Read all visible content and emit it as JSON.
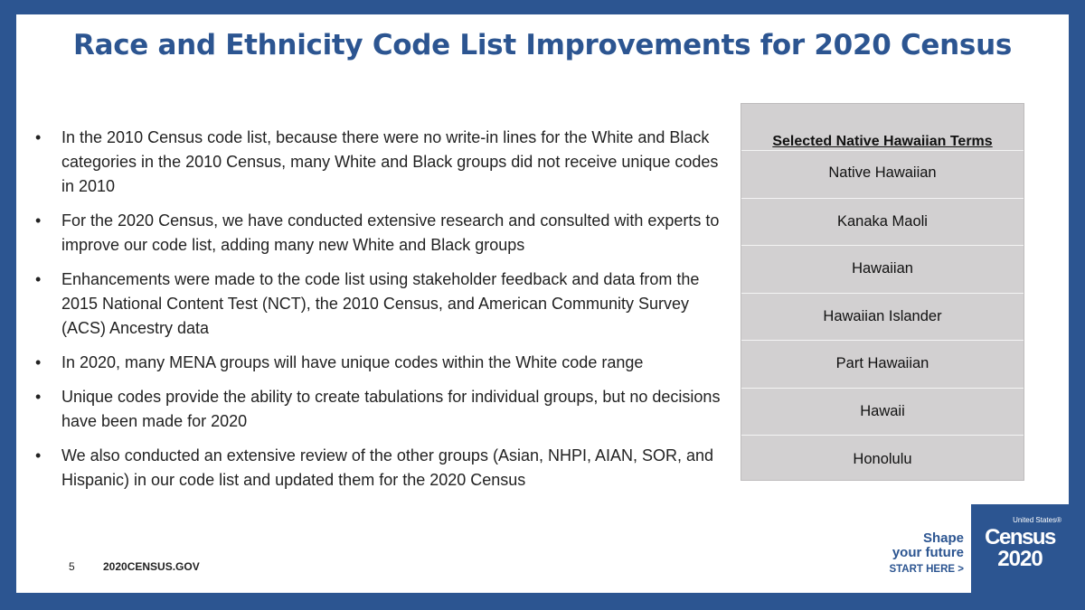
{
  "slide": {
    "title": "Race and Ethnicity Code List Improvements for 2020 Census",
    "bullets": [
      "In the 2010 Census code list, because there were no write-in lines for the White and Black categories in the 2010 Census, many White and Black groups did not receive unique codes in 2010",
      "For the 2020 Census, we have conducted extensive research and consulted with experts to improve our code list, adding many new White and Black groups",
      "Enhancements were made to the code list using stakeholder feedback and data from the 2015 National Content Test (NCT), the 2010 Census, and American Community Survey (ACS) Ancestry data",
      "In 2020, many MENA groups will have unique codes within the White code range",
      "Unique codes provide the ability to create tabulations for individual groups, but no decisions have been made for 2020",
      "We also conducted an extensive review of the other groups (Asian, NHPI, AIAN, SOR, and Hispanic) in our code list and updated them for the 2020 Census"
    ]
  },
  "terms_table": {
    "header": "Selected Native Hawaiian Terms",
    "rows": [
      "Native Hawaiian",
      "Kanaka Maoli",
      "Hawaiian",
      "Hawaiian Islander",
      "Part Hawaiian",
      "Hawaii",
      "Honolulu"
    ]
  },
  "footer": {
    "page_number": "5",
    "website": "2020CENSUS.GOV",
    "tagline_line1": "Shape",
    "tagline_line2": "your future",
    "tagline_cta": "START HERE >",
    "logo_small": "United States®",
    "logo_name": "Census",
    "logo_year": "2020"
  },
  "colors": {
    "brand_blue": "#2c5591",
    "table_gray": "#d2d0d1"
  }
}
